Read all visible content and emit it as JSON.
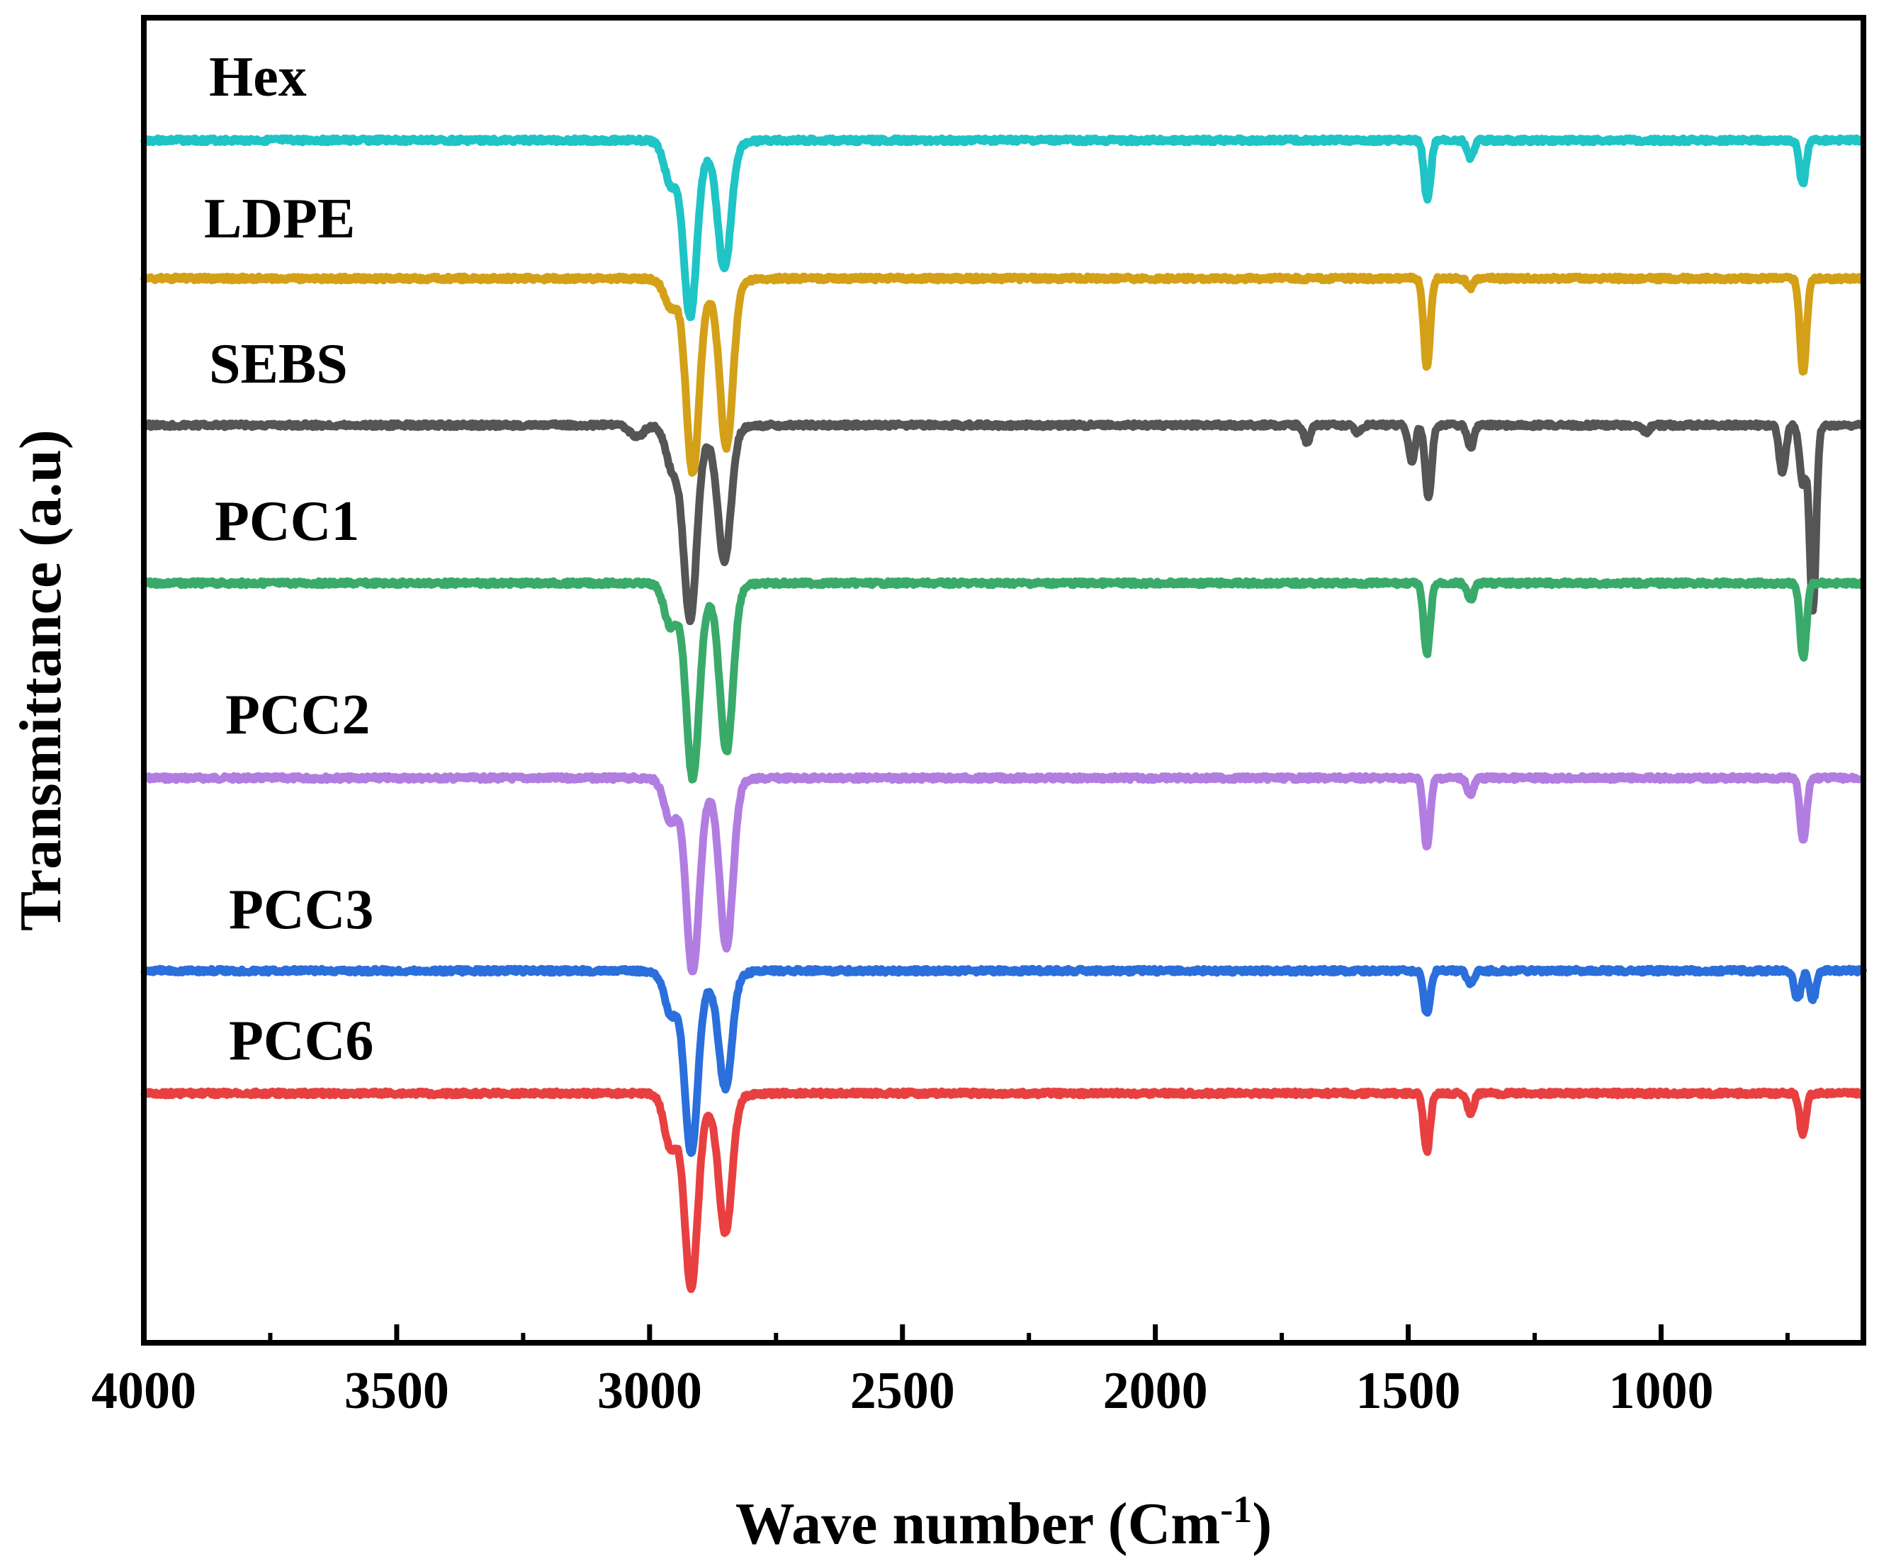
{
  "chart_data": {
    "type": "line",
    "title": "",
    "xlabel": "Wave number (Cm",
    "xlabel_superscript": "-1",
    "xlabel_suffix": ")",
    "ylabel": "Transmittance (a.u)",
    "xlim": [
      4000,
      600
    ],
    "x_reversed": true,
    "yticks_shown": false,
    "xticks": [
      4000,
      3500,
      3000,
      2500,
      2000,
      1500,
      1000
    ],
    "xtick_labels": [
      "4000",
      "3500",
      "3000",
      "2500",
      "2000",
      "1500",
      "1000"
    ],
    "stacked_offset_plot": true,
    "series": [
      {
        "name": "Hex",
        "color": "#1fc4c6",
        "baseline": 0,
        "peaks": [
          {
            "x": 2958,
            "depth": 0.35
          },
          {
            "x": 2920,
            "depth": 1.45
          },
          {
            "x": 2852,
            "depth": 1.05
          },
          {
            "x": 1462,
            "depth": 0.52
          },
          {
            "x": 1377,
            "depth": 0.15
          },
          {
            "x": 720,
            "depth": 0.38
          }
        ]
      },
      {
        "name": "LDPE",
        "color": "#d4a017",
        "baseline": 0,
        "peaks": [
          {
            "x": 2958,
            "depth": 0.22
          },
          {
            "x": 2915,
            "depth": 1.6
          },
          {
            "x": 2848,
            "depth": 1.4
          },
          {
            "x": 1463,
            "depth": 0.78
          },
          {
            "x": 1377,
            "depth": 0.08
          },
          {
            "x": 719,
            "depth": 0.82
          }
        ]
      },
      {
        "name": "SEBS",
        "color": "#555555",
        "baseline": 0,
        "peaks": [
          {
            "x": 3025,
            "depth": 0.1
          },
          {
            "x": 2955,
            "depth": 0.35
          },
          {
            "x": 2920,
            "depth": 1.6
          },
          {
            "x": 2852,
            "depth": 1.1
          },
          {
            "x": 1700,
            "depth": 0.15
          },
          {
            "x": 1600,
            "depth": 0.06
          },
          {
            "x": 1493,
            "depth": 0.32
          },
          {
            "x": 1460,
            "depth": 0.62
          },
          {
            "x": 1377,
            "depth": 0.2
          },
          {
            "x": 1030,
            "depth": 0.06
          },
          {
            "x": 760,
            "depth": 0.42
          },
          {
            "x": 720,
            "depth": 0.5
          },
          {
            "x": 700,
            "depth": 1.6
          }
        ]
      },
      {
        "name": "PCC1",
        "color": "#3aaa6a",
        "baseline": 0,
        "peaks": [
          {
            "x": 2958,
            "depth": 0.35
          },
          {
            "x": 2915,
            "depth": 1.6
          },
          {
            "x": 2848,
            "depth": 1.4
          },
          {
            "x": 1463,
            "depth": 0.62
          },
          {
            "x": 1377,
            "depth": 0.15
          },
          {
            "x": 719,
            "depth": 0.65
          }
        ]
      },
      {
        "name": "PCC2",
        "color": "#b27de0",
        "baseline": 0,
        "peaks": [
          {
            "x": 2958,
            "depth": 0.35
          },
          {
            "x": 2915,
            "depth": 1.6
          },
          {
            "x": 2848,
            "depth": 1.4
          },
          {
            "x": 1463,
            "depth": 0.6
          },
          {
            "x": 1377,
            "depth": 0.15
          },
          {
            "x": 719,
            "depth": 0.55
          }
        ]
      },
      {
        "name": "PCC3",
        "color": "#2a6fdb",
        "baseline": 0,
        "peaks": [
          {
            "x": 2958,
            "depth": 0.35
          },
          {
            "x": 2918,
            "depth": 1.5
          },
          {
            "x": 2850,
            "depth": 0.95
          },
          {
            "x": 1463,
            "depth": 0.38
          },
          {
            "x": 1377,
            "depth": 0.12
          },
          {
            "x": 730,
            "depth": 0.25
          },
          {
            "x": 700,
            "depth": 0.25
          }
        ]
      },
      {
        "name": "PCC6",
        "color": "#e84040",
        "baseline": 0,
        "peaks": [
          {
            "x": 2958,
            "depth": 0.45
          },
          {
            "x": 2918,
            "depth": 1.6
          },
          {
            "x": 2850,
            "depth": 1.15
          },
          {
            "x": 1463,
            "depth": 0.5
          },
          {
            "x": 1377,
            "depth": 0.18
          },
          {
            "x": 720,
            "depth": 0.35
          }
        ]
      }
    ]
  }
}
